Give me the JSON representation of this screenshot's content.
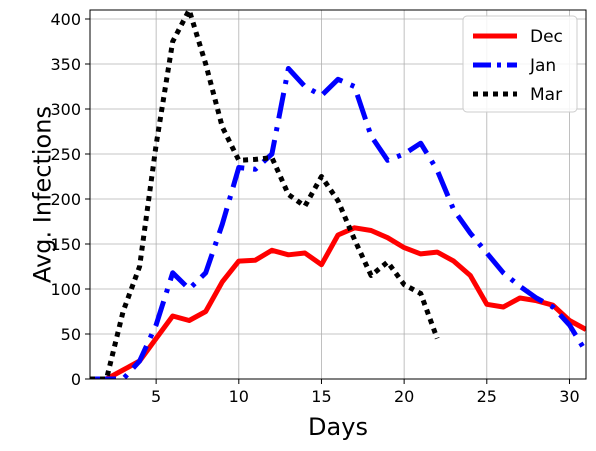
{
  "chart_data": {
    "type": "line",
    "title": "",
    "xlabel": "Days",
    "ylabel": "Avg. Infections",
    "xlim": [
      1,
      31
    ],
    "ylim": [
      0,
      410
    ],
    "xticks": [
      5,
      10,
      15,
      20,
      25,
      30
    ],
    "yticks": [
      0,
      50,
      100,
      150,
      200,
      250,
      300,
      350,
      400
    ],
    "grid": true,
    "legend_position": "top-right",
    "series": [
      {
        "name": "Dec",
        "color": "#ff0000",
        "style": "solid",
        "x": [
          1,
          2,
          3,
          4,
          5,
          6,
          7,
          8,
          9,
          10,
          11,
          12,
          13,
          14,
          15,
          16,
          17,
          18,
          19,
          20,
          21,
          22,
          23,
          24,
          25,
          26,
          27,
          28,
          29,
          30,
          31
        ],
        "y": [
          0,
          0,
          10,
          20,
          45,
          70,
          65,
          75,
          108,
          131,
          132,
          143,
          138,
          140,
          127,
          160,
          168,
          165,
          157,
          146,
          139,
          141,
          131,
          115,
          83,
          80,
          90,
          87,
          82,
          65,
          55
        ]
      },
      {
        "name": "Jan",
        "color": "#0000ff",
        "style": "dashdot",
        "x": [
          1,
          2,
          3,
          4,
          5,
          6,
          7,
          8,
          9,
          10,
          11,
          12,
          13,
          14,
          15,
          16,
          17,
          18,
          19,
          20,
          21,
          22,
          23,
          24,
          25,
          26,
          27,
          28,
          29,
          30,
          31
        ],
        "y": [
          0,
          0,
          0,
          20,
          60,
          118,
          100,
          118,
          172,
          235,
          233,
          250,
          345,
          325,
          315,
          333,
          325,
          270,
          243,
          250,
          262,
          232,
          188,
          162,
          140,
          118,
          103,
          90,
          80,
          60,
          30
        ]
      },
      {
        "name": "Mar",
        "color": "#000000",
        "style": "dotted",
        "x": [
          1,
          2,
          3,
          4,
          5,
          6,
          7,
          8,
          9,
          10,
          11,
          12,
          13,
          14,
          15,
          16,
          17,
          18,
          19,
          20,
          21,
          22
        ],
        "y": [
          0,
          0,
          75,
          125,
          260,
          375,
          410,
          350,
          280,
          243,
          244,
          246,
          205,
          192,
          225,
          198,
          155,
          115,
          130,
          105,
          95,
          45
        ]
      }
    ]
  }
}
